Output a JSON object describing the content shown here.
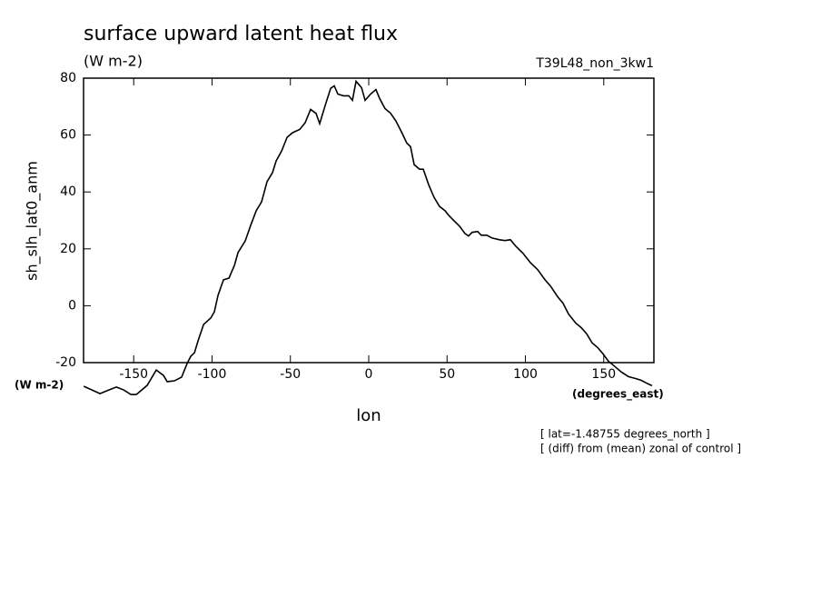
{
  "chart_data": {
    "type": "line",
    "title": "surface upward latent heat flux",
    "units": "(W m-2)",
    "run_label": "T39L48_non_3kw1",
    "ylabel": "sh_slh_lat0_anm",
    "y_units": "(W m-2)",
    "x_units": "(degrees_east)",
    "xlabel": "lon",
    "notes": [
      "[ lat=-1.48755 degrees_north ]",
      "[ (diff) from (mean) zonal of control ]"
    ],
    "xlim": [
      -182,
      182
    ],
    "ylim": [
      -20,
      80
    ],
    "xticks": [
      -150,
      -100,
      -50,
      0,
      50,
      100,
      150
    ],
    "yticks": [
      -20,
      0,
      20,
      40,
      60,
      80
    ],
    "series": [
      {
        "color": "#000000",
        "x": [
          -181.9,
          -171.5,
          -165.7,
          -161.1,
          -156.4,
          -151.8,
          -148.3,
          -141.4,
          -135.6,
          -131.0,
          -128.6,
          -124.0,
          -119.4,
          -115.9,
          -113.6,
          -111.2,
          -108.9,
          -105.4,
          -100.8,
          -98.5,
          -96.2,
          -92.7,
          -89.2,
          -85.7,
          -83.4,
          -78.8,
          -75.3,
          -71.8,
          -68.4,
          -64.9,
          -61.4,
          -59.1,
          -55.6,
          -52.1,
          -48.7,
          -44.0,
          -40.6,
          -37.1,
          -33.6,
          -31.3,
          -27.8,
          -24.3,
          -22.0,
          -19.7,
          -16.2,
          -12.7,
          -10.4,
          -8.1,
          -4.6,
          -2.3,
          1.2,
          4.6,
          7.0,
          10.4,
          13.9,
          17.4,
          20.9,
          24.3,
          26.7,
          29.0,
          32.4,
          34.8,
          38.2,
          41.7,
          45.2,
          48.7,
          51.0,
          53.3,
          57.9,
          61.4,
          63.7,
          66.0,
          69.5,
          71.8,
          75.3,
          78.8,
          83.4,
          86.9,
          90.4,
          93.9,
          98.5,
          103.1,
          107.8,
          112.4,
          115.9,
          120.5,
          124.0,
          127.5,
          132.1,
          135.6,
          139.1,
          142.6,
          146.1,
          149.5,
          153.0,
          156.5,
          161.2,
          165.7,
          170.3,
          173.8,
          177.3,
          180.8
        ],
        "values": [
          -28.3,
          -30.9,
          -29.6,
          -28.6,
          -29.6,
          -31.2,
          -31.2,
          -28.0,
          -22.6,
          -24.5,
          -26.7,
          -26.4,
          -25.1,
          -20.3,
          -17.8,
          -16.5,
          -12.3,
          -6.6,
          -4.3,
          -2.1,
          3.6,
          9.1,
          9.7,
          14.2,
          18.7,
          22.8,
          28.3,
          33.4,
          36.5,
          43.6,
          46.8,
          50.9,
          54.4,
          59.2,
          60.8,
          62.0,
          64.3,
          69.0,
          67.6,
          64.0,
          70.4,
          76.4,
          77.3,
          74.4,
          73.8,
          73.8,
          72.2,
          78.9,
          76.7,
          72.2,
          74.4,
          76.0,
          72.8,
          69.3,
          67.7,
          64.9,
          61.1,
          57.2,
          55.9,
          49.6,
          48.0,
          48.0,
          42.6,
          38.1,
          34.9,
          33.4,
          31.8,
          30.5,
          28.0,
          25.4,
          24.5,
          25.8,
          26.1,
          24.8,
          24.8,
          23.8,
          23.2,
          22.9,
          23.2,
          20.9,
          18.4,
          15.2,
          12.7,
          9.2,
          7.0,
          3.2,
          0.9,
          -2.9,
          -6.1,
          -7.7,
          -9.9,
          -13.1,
          -14.7,
          -16.9,
          -19.5,
          -21.1,
          -23.3,
          -24.9,
          -25.6,
          -26.2,
          -27.2,
          -28.1
        ]
      }
    ]
  }
}
